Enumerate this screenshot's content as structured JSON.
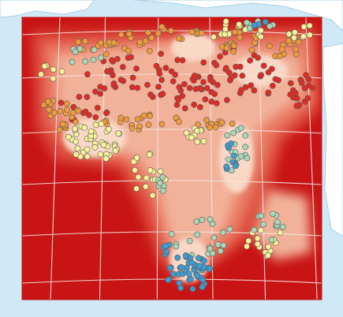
{
  "map": {
    "colors": {
      "ocean": "#cfe9f7",
      "land_outline": "#a9cfe6",
      "land_fill": "#ffffff",
      "surface_low": "#c81414",
      "surface_mid_low": "#dc4a3a",
      "surface_mid": "#ea7a63",
      "surface_high": "#f2b29a",
      "surface_peak": "#f9d8c6",
      "graticule": "#f4e6e0",
      "marker_stroke": "#5a5a5a"
    },
    "point_categories": [
      {
        "id": "red",
        "color": "#e02b25",
        "icon": "circle-marker"
      },
      {
        "id": "orange",
        "color": "#ef9a3a",
        "icon": "circle-marker"
      },
      {
        "id": "yellow",
        "color": "#f7f19a",
        "icon": "circle-marker"
      },
      {
        "id": "sage",
        "color": "#a9d6b7",
        "icon": "circle-marker"
      },
      {
        "id": "blue",
        "color": "#3f9bd0",
        "icon": "circle-marker"
      }
    ]
  }
}
